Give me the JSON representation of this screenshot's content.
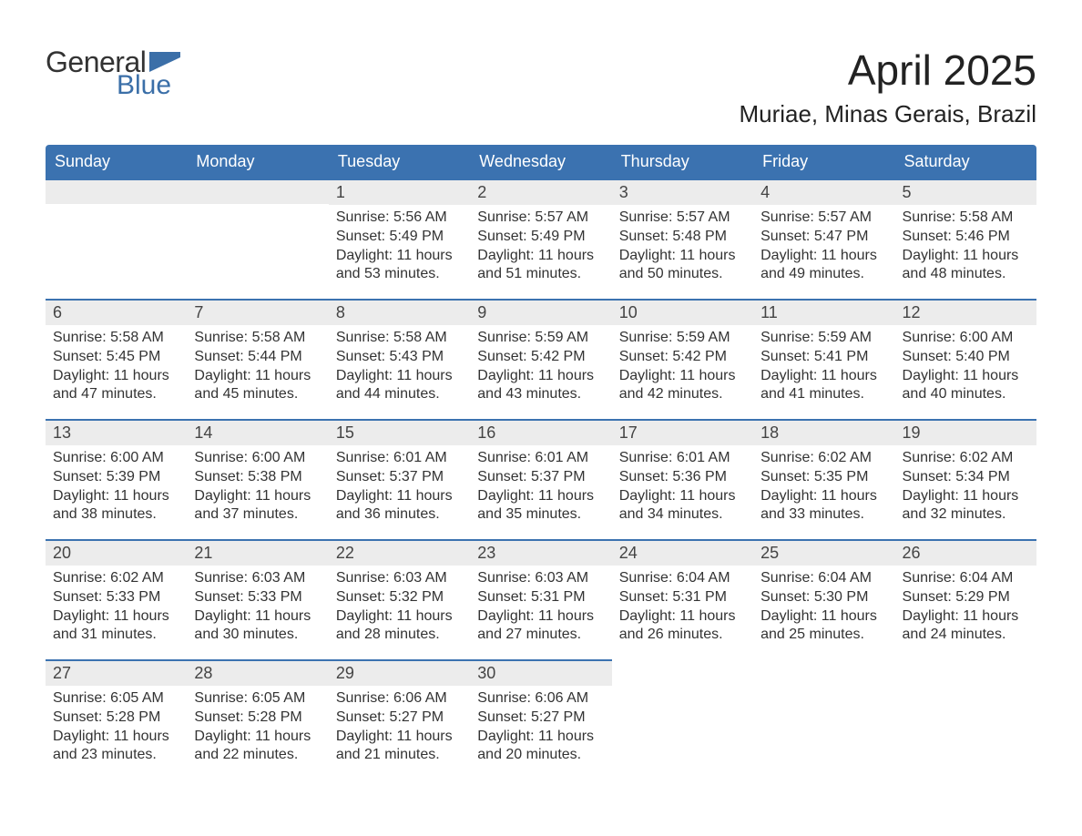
{
  "logo": {
    "word1": "General",
    "word2": "Blue",
    "flag_color": "#3b6fa8",
    "word1_color": "#333333"
  },
  "title": "April 2025",
  "location": "Muriae, Minas Gerais, Brazil",
  "colors": {
    "header_bg": "#3b72b0",
    "header_fg": "#ffffff",
    "daynum_bg": "#ececec",
    "row_accent": "#3b72b0",
    "text": "#333333",
    "page_bg": "#ffffff"
  },
  "weekdays": [
    "Sunday",
    "Monday",
    "Tuesday",
    "Wednesday",
    "Thursday",
    "Friday",
    "Saturday"
  ],
  "weeks": [
    [
      null,
      null,
      {
        "n": "1",
        "sr": "Sunrise: 5:56 AM",
        "ss": "Sunset: 5:49 PM",
        "d1": "Daylight: 11 hours",
        "d2": "and 53 minutes."
      },
      {
        "n": "2",
        "sr": "Sunrise: 5:57 AM",
        "ss": "Sunset: 5:49 PM",
        "d1": "Daylight: 11 hours",
        "d2": "and 51 minutes."
      },
      {
        "n": "3",
        "sr": "Sunrise: 5:57 AM",
        "ss": "Sunset: 5:48 PM",
        "d1": "Daylight: 11 hours",
        "d2": "and 50 minutes."
      },
      {
        "n": "4",
        "sr": "Sunrise: 5:57 AM",
        "ss": "Sunset: 5:47 PM",
        "d1": "Daylight: 11 hours",
        "d2": "and 49 minutes."
      },
      {
        "n": "5",
        "sr": "Sunrise: 5:58 AM",
        "ss": "Sunset: 5:46 PM",
        "d1": "Daylight: 11 hours",
        "d2": "and 48 minutes."
      }
    ],
    [
      {
        "n": "6",
        "sr": "Sunrise: 5:58 AM",
        "ss": "Sunset: 5:45 PM",
        "d1": "Daylight: 11 hours",
        "d2": "and 47 minutes."
      },
      {
        "n": "7",
        "sr": "Sunrise: 5:58 AM",
        "ss": "Sunset: 5:44 PM",
        "d1": "Daylight: 11 hours",
        "d2": "and 45 minutes."
      },
      {
        "n": "8",
        "sr": "Sunrise: 5:58 AM",
        "ss": "Sunset: 5:43 PM",
        "d1": "Daylight: 11 hours",
        "d2": "and 44 minutes."
      },
      {
        "n": "9",
        "sr": "Sunrise: 5:59 AM",
        "ss": "Sunset: 5:42 PM",
        "d1": "Daylight: 11 hours",
        "d2": "and 43 minutes."
      },
      {
        "n": "10",
        "sr": "Sunrise: 5:59 AM",
        "ss": "Sunset: 5:42 PM",
        "d1": "Daylight: 11 hours",
        "d2": "and 42 minutes."
      },
      {
        "n": "11",
        "sr": "Sunrise: 5:59 AM",
        "ss": "Sunset: 5:41 PM",
        "d1": "Daylight: 11 hours",
        "d2": "and 41 minutes."
      },
      {
        "n": "12",
        "sr": "Sunrise: 6:00 AM",
        "ss": "Sunset: 5:40 PM",
        "d1": "Daylight: 11 hours",
        "d2": "and 40 minutes."
      }
    ],
    [
      {
        "n": "13",
        "sr": "Sunrise: 6:00 AM",
        "ss": "Sunset: 5:39 PM",
        "d1": "Daylight: 11 hours",
        "d2": "and 38 minutes."
      },
      {
        "n": "14",
        "sr": "Sunrise: 6:00 AM",
        "ss": "Sunset: 5:38 PM",
        "d1": "Daylight: 11 hours",
        "d2": "and 37 minutes."
      },
      {
        "n": "15",
        "sr": "Sunrise: 6:01 AM",
        "ss": "Sunset: 5:37 PM",
        "d1": "Daylight: 11 hours",
        "d2": "and 36 minutes."
      },
      {
        "n": "16",
        "sr": "Sunrise: 6:01 AM",
        "ss": "Sunset: 5:37 PM",
        "d1": "Daylight: 11 hours",
        "d2": "and 35 minutes."
      },
      {
        "n": "17",
        "sr": "Sunrise: 6:01 AM",
        "ss": "Sunset: 5:36 PM",
        "d1": "Daylight: 11 hours",
        "d2": "and 34 minutes."
      },
      {
        "n": "18",
        "sr": "Sunrise: 6:02 AM",
        "ss": "Sunset: 5:35 PM",
        "d1": "Daylight: 11 hours",
        "d2": "and 33 minutes."
      },
      {
        "n": "19",
        "sr": "Sunrise: 6:02 AM",
        "ss": "Sunset: 5:34 PM",
        "d1": "Daylight: 11 hours",
        "d2": "and 32 minutes."
      }
    ],
    [
      {
        "n": "20",
        "sr": "Sunrise: 6:02 AM",
        "ss": "Sunset: 5:33 PM",
        "d1": "Daylight: 11 hours",
        "d2": "and 31 minutes."
      },
      {
        "n": "21",
        "sr": "Sunrise: 6:03 AM",
        "ss": "Sunset: 5:33 PM",
        "d1": "Daylight: 11 hours",
        "d2": "and 30 minutes."
      },
      {
        "n": "22",
        "sr": "Sunrise: 6:03 AM",
        "ss": "Sunset: 5:32 PM",
        "d1": "Daylight: 11 hours",
        "d2": "and 28 minutes."
      },
      {
        "n": "23",
        "sr": "Sunrise: 6:03 AM",
        "ss": "Sunset: 5:31 PM",
        "d1": "Daylight: 11 hours",
        "d2": "and 27 minutes."
      },
      {
        "n": "24",
        "sr": "Sunrise: 6:04 AM",
        "ss": "Sunset: 5:31 PM",
        "d1": "Daylight: 11 hours",
        "d2": "and 26 minutes."
      },
      {
        "n": "25",
        "sr": "Sunrise: 6:04 AM",
        "ss": "Sunset: 5:30 PM",
        "d1": "Daylight: 11 hours",
        "d2": "and 25 minutes."
      },
      {
        "n": "26",
        "sr": "Sunrise: 6:04 AM",
        "ss": "Sunset: 5:29 PM",
        "d1": "Daylight: 11 hours",
        "d2": "and 24 minutes."
      }
    ],
    [
      {
        "n": "27",
        "sr": "Sunrise: 6:05 AM",
        "ss": "Sunset: 5:28 PM",
        "d1": "Daylight: 11 hours",
        "d2": "and 23 minutes."
      },
      {
        "n": "28",
        "sr": "Sunrise: 6:05 AM",
        "ss": "Sunset: 5:28 PM",
        "d1": "Daylight: 11 hours",
        "d2": "and 22 minutes."
      },
      {
        "n": "29",
        "sr": "Sunrise: 6:06 AM",
        "ss": "Sunset: 5:27 PM",
        "d1": "Daylight: 11 hours",
        "d2": "and 21 minutes."
      },
      {
        "n": "30",
        "sr": "Sunrise: 6:06 AM",
        "ss": "Sunset: 5:27 PM",
        "d1": "Daylight: 11 hours",
        "d2": "and 20 minutes."
      },
      null,
      null,
      null
    ]
  ]
}
